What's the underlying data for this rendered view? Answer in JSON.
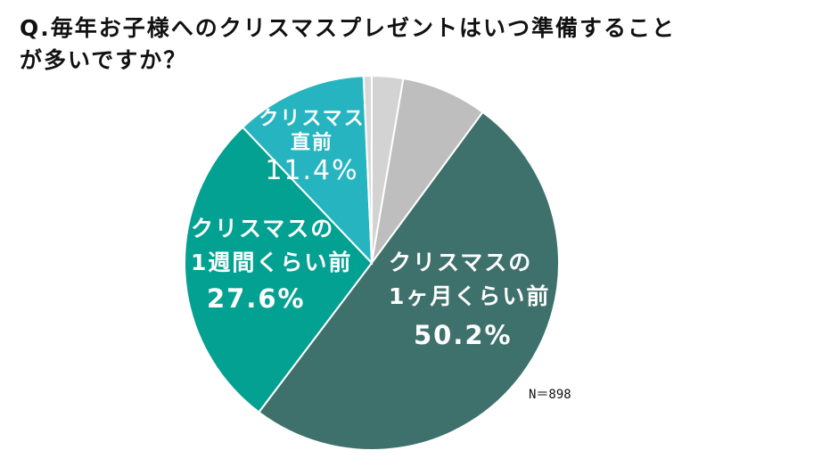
{
  "title": {
    "line1": "Q.毎年お子様へのクリスマスプレゼントはいつ準備すること",
    "line2": "が多いですか？"
  },
  "sample_size": "N＝898",
  "colors": {
    "month_before": "#3f716c",
    "week_before": "#02a192",
    "just_before": "#26b5c0",
    "gray_mid": "#bebebe",
    "gray_light": "#d3d3d3",
    "gray_sliver": "#d8d8d8"
  },
  "labels": {
    "month_before": {
      "line1": "クリスマスの",
      "line2": "1ヶ月くらい前",
      "value": "50.2%"
    },
    "week_before": {
      "line1": "クリスマスの",
      "line2": "1週間くらい前",
      "value": "27.6%"
    },
    "just_before": {
      "line1": "クリスマス",
      "line2": "直前",
      "value": "11.4%"
    }
  },
  "chart_data": {
    "type": "pie",
    "title": "Q.毎年お子様へのクリスマスプレゼントはいつ準備することが多いですか？",
    "annotation": "N＝898",
    "start_angle": "12 o'clock, clockwise",
    "slices": [
      {
        "label": "(unlabeled, light gray)",
        "value": 2.7,
        "color": "#d3d3d3"
      },
      {
        "label": "(unlabeled, gray)",
        "value": 7.4,
        "color": "#bebebe"
      },
      {
        "label": "クリスマスの1ヶ月くらい前",
        "value": 50.2,
        "color": "#3f716c"
      },
      {
        "label": "クリスマスの1週間くらい前",
        "value": 27.6,
        "color": "#02a192"
      },
      {
        "label": "クリスマス直前",
        "value": 11.4,
        "color": "#26b5c0"
      },
      {
        "label": "(unlabeled, sliver)",
        "value": 0.7,
        "color": "#d8d8d8"
      }
    ],
    "legend": "none (inline labels)"
  }
}
